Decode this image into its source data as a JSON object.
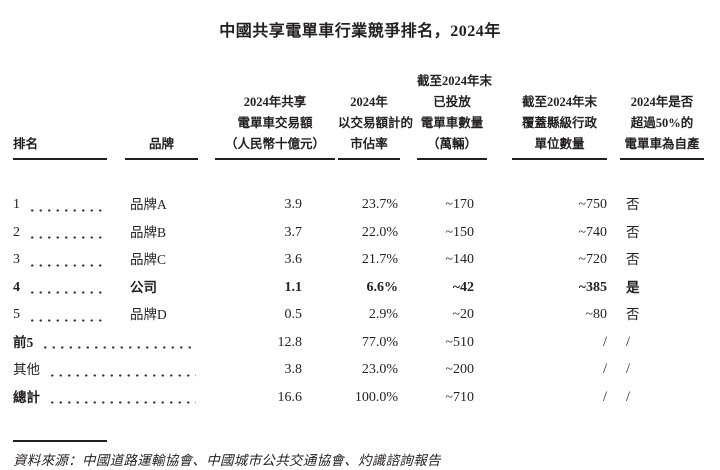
{
  "title": "中國共享電單車行業競爭排名，2024年",
  "colors": {
    "text": "#231f20",
    "background": "#ffffff",
    "rule": "#231f20"
  },
  "table": {
    "headers": {
      "rank": "排名",
      "brand": "品牌",
      "gmv_lines": [
        "2024年共享",
        "電單車交易額",
        "（人民幣十億元）"
      ],
      "share_lines": [
        "2024年",
        "以交易額計的",
        "市佔率"
      ],
      "fleet_lines": [
        "截至2024年末",
        "已投放",
        "電單車數量",
        "（萬輛）"
      ],
      "counties_lines": [
        "截至2024年末",
        "覆蓋縣級行政",
        "單位數量"
      ],
      "inhouse_lines": [
        "2024年是否",
        "超過50%的",
        "電單車為自產"
      ]
    },
    "rows": [
      {
        "rank": "1",
        "brand": "品牌A",
        "gmv": "3.9",
        "share": "23.7%",
        "fleet": "~170",
        "counties": "~750",
        "inhouse": "否",
        "bold": false
      },
      {
        "rank": "2",
        "brand": "品牌B",
        "gmv": "3.7",
        "share": "22.0%",
        "fleet": "~150",
        "counties": "~740",
        "inhouse": "否",
        "bold": false
      },
      {
        "rank": "3",
        "brand": "品牌C",
        "gmv": "3.6",
        "share": "21.7%",
        "fleet": "~140",
        "counties": "~720",
        "inhouse": "否",
        "bold": false
      },
      {
        "rank": "4",
        "brand": "公司",
        "gmv": "1.1",
        "share": "6.6%",
        "fleet": "~42",
        "counties": "~385",
        "inhouse": "是",
        "bold": true
      },
      {
        "rank": "5",
        "brand": "品牌D",
        "gmv": "0.5",
        "share": "2.9%",
        "fleet": "~20",
        "counties": "~80",
        "inhouse": "否",
        "bold": false
      }
    ],
    "summary_rows": [
      {
        "label": "前5",
        "gmv": "12.8",
        "share": "77.0%",
        "fleet": "~510",
        "counties": "/",
        "inhouse": "/",
        "label_bold": true
      },
      {
        "label": "其他",
        "gmv": "3.8",
        "share": "23.0%",
        "fleet": "~200",
        "counties": "/",
        "inhouse": "/",
        "label_bold": false
      },
      {
        "label": "總計",
        "gmv": "16.6",
        "share": "100.0%",
        "fleet": "~710",
        "counties": "/",
        "inhouse": "/",
        "label_bold": true
      }
    ]
  },
  "footer": {
    "source": "資料來源：中國道路運輸協會、中國城市公共交通協會、灼識諮詢報告"
  }
}
